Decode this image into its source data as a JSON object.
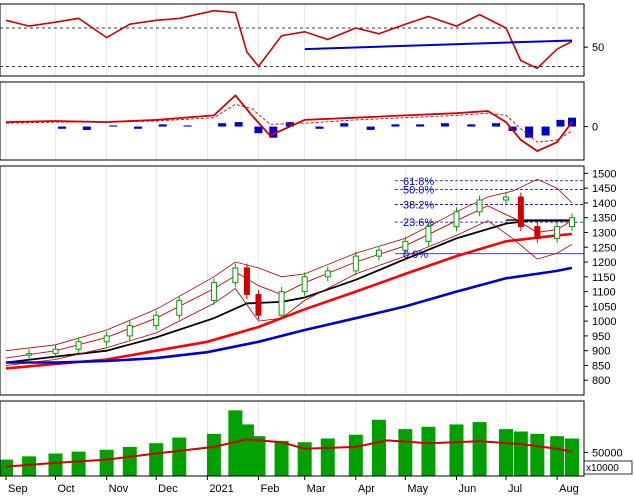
{
  "colors": {
    "background": "#ffffff",
    "frame": "#000000",
    "candle_up": "#00a000",
    "candle_down": "#d00000",
    "ma_short": "#d00000",
    "ma_mid": "#000000",
    "ma_long": "#ff0000",
    "ma_longest": "#0000cc",
    "bollinger": "#b00000",
    "fib": "#0000cc",
    "rsi_line": "#d00000",
    "rsi_trend": "#0000cc",
    "macd_line": "#d00000",
    "macd_signal": "#d00000",
    "macd_hist": "#0000cc",
    "volume_bar": "#00a000",
    "volume_ma": "#d00000"
  },
  "x_axis": {
    "type": "date",
    "months": [
      "Sep",
      "Oct",
      "Nov",
      "Dec",
      "2021",
      "Feb",
      "Mar",
      "Apr",
      "May",
      "Jun",
      "Jul",
      "Aug"
    ],
    "month_starts": [
      "2020-09-01",
      "2020-10-01",
      "2020-11-01",
      "2020-12-01",
      "2021-01-01",
      "2021-02-01",
      "2021-03-01",
      "2021-04-01",
      "2021-05-01",
      "2021-06-01",
      "2021-07-01",
      "2021-08-01"
    ],
    "range": [
      "2020-09-01",
      "2021-08-10"
    ]
  },
  "chart_data": [
    {
      "type": "line",
      "panel": "RSI",
      "y_ticks": [
        50
      ],
      "ylim": [
        20,
        95
      ],
      "reference_lines": [
        30,
        70
      ],
      "series": [
        {
          "style": "rsi",
          "x": [
            "2020-09-01",
            "2020-09-15",
            "2020-10-01",
            "2020-10-15",
            "2020-11-01",
            "2020-11-15",
            "2020-12-01",
            "2020-12-15",
            "2021-01-05",
            "2021-01-18",
            "2021-01-25",
            "2021-02-01",
            "2021-02-15",
            "2021-03-01",
            "2021-03-15",
            "2021-04-01",
            "2021-04-15",
            "2021-05-01",
            "2021-05-15",
            "2021-06-01",
            "2021-06-15",
            "2021-07-01",
            "2021-07-10",
            "2021-07-20",
            "2021-08-01",
            "2021-08-10"
          ],
          "y": [
            78,
            72,
            76,
            80,
            60,
            74,
            78,
            80,
            88,
            86,
            45,
            30,
            62,
            66,
            58,
            70,
            64,
            74,
            82,
            72,
            84,
            70,
            36,
            28,
            48,
            56
          ]
        },
        {
          "style": "trend",
          "x": [
            "2021-03-01",
            "2021-08-10"
          ],
          "y": [
            48,
            57
          ]
        }
      ]
    },
    {
      "type": "line",
      "panel": "MACD",
      "y_ticks": [
        0
      ],
      "ylim": [
        -30,
        40
      ],
      "series": [
        {
          "style": "macd",
          "x": [
            "2020-09-01",
            "2020-10-01",
            "2020-11-01",
            "2020-12-01",
            "2021-01-05",
            "2021-01-18",
            "2021-01-28",
            "2021-02-08",
            "2021-03-01",
            "2021-04-01",
            "2021-05-01",
            "2021-06-01",
            "2021-06-20",
            "2021-07-01",
            "2021-07-10",
            "2021-07-20",
            "2021-08-01",
            "2021-08-10"
          ],
          "y": [
            4,
            5,
            4,
            6,
            10,
            28,
            10,
            -8,
            6,
            8,
            10,
            12,
            14,
            4,
            -12,
            -22,
            -14,
            4
          ]
        },
        {
          "style": "signal",
          "x": [
            "2020-09-01",
            "2020-10-01",
            "2020-11-01",
            "2020-12-01",
            "2021-01-05",
            "2021-01-18",
            "2021-01-28",
            "2021-02-08",
            "2021-03-01",
            "2021-04-01",
            "2021-05-01",
            "2021-06-01",
            "2021-06-20",
            "2021-07-01",
            "2021-07-10",
            "2021-07-20",
            "2021-08-01",
            "2021-08-10"
          ],
          "y": [
            3,
            4,
            4,
            5,
            8,
            20,
            16,
            2,
            3,
            6,
            8,
            10,
            12,
            10,
            -2,
            -14,
            -12,
            -4
          ]
        },
        {
          "style": "hist",
          "x": [
            "2020-10-05",
            "2020-10-20",
            "2020-11-05",
            "2020-11-20",
            "2020-12-05",
            "2020-12-20",
            "2021-01-10",
            "2021-01-20",
            "2021-02-01",
            "2021-02-10",
            "2021-02-20",
            "2021-03-10",
            "2021-03-25",
            "2021-04-10",
            "2021-04-25",
            "2021-05-10",
            "2021-05-25",
            "2021-06-10",
            "2021-06-25",
            "2021-07-05",
            "2021-07-15",
            "2021-07-25",
            "2021-08-03",
            "2021-08-10"
          ],
          "y": [
            -2,
            -3,
            1,
            -2,
            2,
            1,
            3,
            4,
            -6,
            -10,
            4,
            -2,
            3,
            -3,
            2,
            2,
            3,
            2,
            3,
            -4,
            -10,
            -8,
            6,
            8
          ]
        }
      ]
    },
    {
      "type": "candlestick",
      "panel": "Price",
      "ylim": [
        750,
        1525
      ],
      "y_ticks": [
        800,
        850,
        900,
        950,
        1000,
        1050,
        1100,
        1150,
        1200,
        1250,
        1300,
        1350,
        1400,
        1450,
        1500
      ],
      "fibonacci": [
        {
          "label": "61.8%",
          "value": 1475
        },
        {
          "label": "50.0%",
          "value": 1445
        },
        {
          "label": "38.2%",
          "value": 1395
        },
        {
          "label": "23.6%",
          "value": 1335
        },
        {
          "label": "0.0%",
          "value": 1228
        }
      ],
      "candles": {
        "x": [
          "2020-09-01",
          "2020-09-15",
          "2020-10-01",
          "2020-10-15",
          "2020-11-01",
          "2020-11-15",
          "2020-12-01",
          "2020-12-15",
          "2021-01-05",
          "2021-01-18",
          "2021-01-25",
          "2021-02-01",
          "2021-02-15",
          "2021-03-01",
          "2021-03-15",
          "2021-04-01",
          "2021-04-15",
          "2021-05-01",
          "2021-05-15",
          "2021-06-01",
          "2021-06-15",
          "2021-07-01",
          "2021-07-10",
          "2021-07-20",
          "2021-08-01",
          "2021-08-10"
        ],
        "close": [
          885,
          890,
          905,
          930,
          950,
          985,
          1020,
          1070,
          1130,
          1180,
          1090,
          1020,
          1100,
          1150,
          1170,
          1220,
          1240,
          1270,
          1320,
          1370,
          1410,
          1420,
          1320,
          1280,
          1320,
          1350
        ]
      },
      "series": [
        {
          "style": "ma_short",
          "x": [
            "2020-09-01",
            "2020-10-01",
            "2020-11-01",
            "2020-12-01",
            "2021-01-05",
            "2021-01-20",
            "2021-02-01",
            "2021-02-15",
            "2021-03-01",
            "2021-04-01",
            "2021-05-01",
            "2021-06-01",
            "2021-06-20",
            "2021-07-05",
            "2021-07-20",
            "2021-08-01",
            "2021-08-10"
          ],
          "y": [
            875,
            900,
            945,
            1010,
            1110,
            1160,
            1120,
            1090,
            1130,
            1200,
            1255,
            1340,
            1390,
            1350,
            1300,
            1310,
            1340
          ]
        },
        {
          "style": "ma_mid",
          "x": [
            "2020-09-01",
            "2020-10-01",
            "2020-11-01",
            "2020-12-01",
            "2021-01-05",
            "2021-01-25",
            "2021-02-15",
            "2021-03-01",
            "2021-04-01",
            "2021-05-01",
            "2021-06-01",
            "2021-07-01",
            "2021-07-15",
            "2021-08-01",
            "2021-08-10"
          ],
          "y": [
            860,
            880,
            900,
            945,
            1010,
            1060,
            1065,
            1080,
            1140,
            1210,
            1280,
            1330,
            1340,
            1340,
            1340
          ]
        },
        {
          "style": "ma_long",
          "x": [
            "2020-09-01",
            "2020-10-01",
            "2020-11-01",
            "2020-12-01",
            "2021-01-01",
            "2021-02-01",
            "2021-03-01",
            "2021-04-01",
            "2021-05-01",
            "2021-06-01",
            "2021-07-01",
            "2021-08-01",
            "2021-08-10"
          ],
          "y": [
            840,
            855,
            870,
            900,
            930,
            980,
            1040,
            1100,
            1160,
            1220,
            1270,
            1290,
            1295
          ]
        },
        {
          "style": "ma_longest",
          "x": [
            "2020-09-01",
            "2020-10-01",
            "2020-11-01",
            "2020-12-01",
            "2021-01-01",
            "2021-02-01",
            "2021-03-01",
            "2021-04-01",
            "2021-05-01",
            "2021-06-01",
            "2021-07-01",
            "2021-08-01",
            "2021-08-10"
          ],
          "y": [
            860,
            860,
            865,
            875,
            895,
            930,
            970,
            1010,
            1050,
            1100,
            1145,
            1170,
            1180
          ]
        },
        {
          "style": "bb_upper",
          "x": [
            "2020-09-01",
            "2020-10-01",
            "2020-11-01",
            "2020-12-01",
            "2021-01-05",
            "2021-01-18",
            "2021-02-01",
            "2021-02-15",
            "2021-03-01",
            "2021-04-01",
            "2021-05-01",
            "2021-06-01",
            "2021-06-20",
            "2021-07-05",
            "2021-07-20",
            "2021-08-01",
            "2021-08-10"
          ],
          "y": [
            900,
            920,
            970,
            1040,
            1150,
            1200,
            1180,
            1150,
            1160,
            1230,
            1280,
            1370,
            1420,
            1440,
            1480,
            1450,
            1400
          ]
        },
        {
          "style": "bb_lower",
          "x": [
            "2020-09-01",
            "2020-10-01",
            "2020-11-01",
            "2020-12-01",
            "2021-01-05",
            "2021-01-18",
            "2021-02-01",
            "2021-02-15",
            "2021-03-01",
            "2021-04-01",
            "2021-05-01",
            "2021-06-01",
            "2021-06-20",
            "2021-07-05",
            "2021-07-20",
            "2021-08-01",
            "2021-08-10"
          ],
          "y": [
            850,
            870,
            910,
            960,
            1060,
            1110,
            1000,
            1010,
            1070,
            1160,
            1220,
            1290,
            1340,
            1280,
            1210,
            1230,
            1260
          ]
        },
        {
          "style": "resistance",
          "x": [
            "2021-07-01",
            "2021-08-10"
          ],
          "y": [
            1342,
            1342
          ]
        }
      ]
    },
    {
      "type": "bar",
      "panel": "Volume",
      "unit_label": "x10000",
      "y_ticks": [
        50000
      ],
      "ylim": [
        0,
        160000
      ],
      "x": [
        "2020-09-01",
        "2020-09-15",
        "2020-10-01",
        "2020-10-15",
        "2020-11-01",
        "2020-11-15",
        "2020-12-01",
        "2020-12-15",
        "2021-01-05",
        "2021-01-18",
        "2021-01-25",
        "2021-02-01",
        "2021-02-15",
        "2021-03-01",
        "2021-03-15",
        "2021-04-01",
        "2021-04-15",
        "2021-05-01",
        "2021-05-15",
        "2021-06-01",
        "2021-06-15",
        "2021-07-01",
        "2021-07-10",
        "2021-07-20",
        "2021-08-01",
        "2021-08-10"
      ],
      "values": [
        35000,
        42000,
        48000,
        52000,
        56000,
        62000,
        70000,
        82000,
        90000,
        140000,
        110000,
        85000,
        75000,
        72000,
        80000,
        88000,
        120000,
        100000,
        105000,
        110000,
        115000,
        100000,
        95000,
        90000,
        85000,
        80000
      ],
      "ma": {
        "x": [
          "2020-09-01",
          "2020-10-01",
          "2020-11-01",
          "2020-12-01",
          "2021-01-05",
          "2021-01-25",
          "2021-02-15",
          "2021-03-01",
          "2021-04-01",
          "2021-04-20",
          "2021-05-15",
          "2021-06-15",
          "2021-07-10",
          "2021-08-01",
          "2021-08-10"
        ],
        "y": [
          20000,
          28000,
          35000,
          48000,
          62000,
          78000,
          72000,
          58000,
          62000,
          76000,
          70000,
          74000,
          68000,
          58000,
          52000
        ]
      }
    }
  ]
}
